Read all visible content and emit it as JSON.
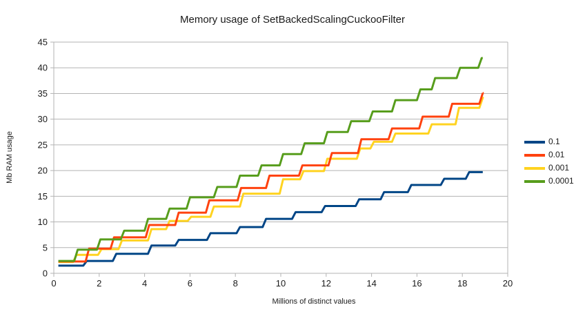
{
  "chart_data": {
    "type": "line",
    "subtype": "step",
    "title": "Memory usage of SetBackedScalingCuckooFilter",
    "xlabel": "Millions of distinct values",
    "ylabel": "Mb RAM usage",
    "xlim": [
      0,
      20
    ],
    "ylim": [
      0,
      45
    ],
    "xticks": [
      0,
      2,
      4,
      6,
      8,
      10,
      12,
      14,
      16,
      18,
      20
    ],
    "yticks": [
      0,
      5,
      10,
      15,
      20,
      25,
      30,
      35,
      40,
      45
    ],
    "grid": "horizontal",
    "legend_position": "right",
    "x_start": 0.2,
    "x_end": 18.9,
    "series": [
      {
        "name": "0.1",
        "color": "#004586",
        "points": [
          [
            0.2,
            1.5
          ],
          [
            1.3,
            2.4
          ],
          [
            2.6,
            3.8
          ],
          [
            4.15,
            5.4
          ],
          [
            5.35,
            6.5
          ],
          [
            6.75,
            7.8
          ],
          [
            8.05,
            9.0
          ],
          [
            9.2,
            10.6
          ],
          [
            10.5,
            11.9
          ],
          [
            11.8,
            13.1
          ],
          [
            13.3,
            14.4
          ],
          [
            14.4,
            15.8
          ],
          [
            15.6,
            17.2
          ],
          [
            17.05,
            18.4
          ],
          [
            18.15,
            19.7
          ]
        ]
      },
      {
        "name": "0.01",
        "color": "#ff420e",
        "points": [
          [
            0.2,
            2.3
          ],
          [
            1.4,
            4.8
          ],
          [
            2.5,
            7.0
          ],
          [
            4.05,
            9.4
          ],
          [
            5.35,
            11.8
          ],
          [
            6.7,
            14.2
          ],
          [
            8.1,
            16.6
          ],
          [
            9.35,
            19.0
          ],
          [
            10.8,
            21.0
          ],
          [
            12.1,
            23.4
          ],
          [
            13.4,
            26.1
          ],
          [
            14.75,
            28.2
          ],
          [
            16.1,
            30.5
          ],
          [
            17.4,
            33.0
          ],
          [
            18.75,
            35.1
          ]
        ]
      },
      {
        "name": "0.001",
        "color": "#ffd320",
        "points": [
          [
            0.2,
            2.2
          ],
          [
            0.85,
            3.6
          ],
          [
            1.95,
            4.7
          ],
          [
            2.85,
            6.4
          ],
          [
            4.15,
            8.6
          ],
          [
            4.95,
            10.2
          ],
          [
            5.9,
            11.0
          ],
          [
            6.9,
            13.0
          ],
          [
            8.2,
            15.5
          ],
          [
            9.95,
            18.3
          ],
          [
            10.85,
            19.9
          ],
          [
            11.9,
            22.3
          ],
          [
            13.35,
            24.3
          ],
          [
            13.95,
            25.6
          ],
          [
            14.9,
            27.2
          ],
          [
            16.5,
            29.0
          ],
          [
            17.7,
            32.2
          ],
          [
            18.75,
            34.2
          ]
        ]
      },
      {
        "name": "0.0001",
        "color": "#579d1c",
        "points": [
          [
            0.2,
            2.4
          ],
          [
            0.9,
            4.6
          ],
          [
            1.9,
            6.6
          ],
          [
            2.95,
            8.3
          ],
          [
            4.0,
            10.6
          ],
          [
            4.95,
            12.6
          ],
          [
            5.85,
            14.8
          ],
          [
            7.05,
            16.8
          ],
          [
            8.05,
            19.0
          ],
          [
            9.0,
            21.0
          ],
          [
            9.95,
            23.2
          ],
          [
            10.9,
            25.3
          ],
          [
            11.9,
            27.5
          ],
          [
            12.95,
            29.6
          ],
          [
            13.9,
            31.5
          ],
          [
            14.9,
            33.7
          ],
          [
            16.0,
            35.8
          ],
          [
            16.65,
            38.0
          ],
          [
            17.75,
            40.0
          ],
          [
            18.7,
            41.9
          ]
        ]
      }
    ]
  },
  "colors": {
    "grid": "#b3b3b3",
    "axis": "#b3b3b3",
    "text": "#1a1a1a",
    "background": "#ffffff"
  }
}
